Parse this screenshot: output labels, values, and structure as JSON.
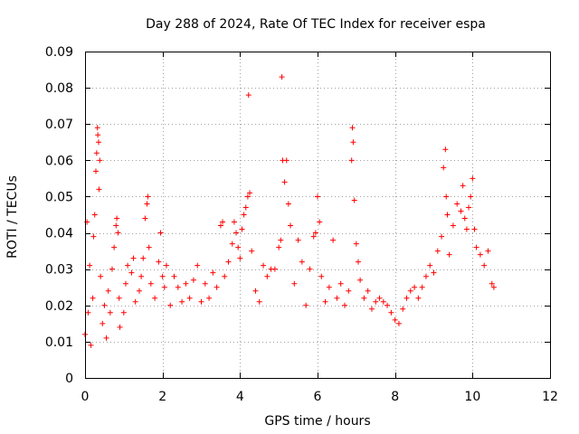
{
  "chart_data": {
    "type": "scatter",
    "title": "Day 288 of 2024, Rate Of TEC Index for receiver espa",
    "xlabel": "GPS time / hours",
    "ylabel": "ROTI / TECUs",
    "xlim": [
      0,
      12
    ],
    "ylim": [
      0,
      0.09
    ],
    "xticks": [
      "0",
      "2",
      "4",
      "6",
      "8",
      "10",
      "12"
    ],
    "yticks": [
      "0",
      "0.01",
      "0.02",
      "0.03",
      "0.04",
      "0.05",
      "0.06",
      "0.07",
      "0.08",
      "0.09"
    ],
    "grid": true,
    "marker": "+",
    "color": "#ff0000",
    "series": [
      {
        "name": "ROTI",
        "x": [
          0.0,
          0.05,
          0.08,
          0.12,
          0.15,
          0.2,
          0.22,
          0.25,
          0.28,
          0.3,
          0.32,
          0.33,
          0.35,
          0.36,
          0.38,
          0.4,
          0.45,
          0.5,
          0.55,
          0.6,
          0.65,
          0.7,
          0.75,
          0.8,
          0.82,
          0.85,
          0.88,
          0.9,
          1.0,
          1.05,
          1.1,
          1.2,
          1.25,
          1.3,
          1.4,
          1.45,
          1.5,
          1.55,
          1.6,
          1.62,
          1.65,
          1.7,
          1.8,
          1.9,
          1.95,
          2.0,
          2.05,
          2.1,
          2.2,
          2.3,
          2.4,
          2.5,
          2.6,
          2.7,
          2.8,
          2.9,
          3.0,
          3.1,
          3.2,
          3.3,
          3.4,
          3.5,
          3.55,
          3.6,
          3.7,
          3.8,
          3.85,
          3.9,
          3.95,
          4.0,
          4.05,
          4.1,
          4.15,
          4.2,
          4.22,
          4.25,
          4.3,
          4.4,
          4.5,
          4.6,
          4.7,
          4.8,
          4.9,
          5.0,
          5.05,
          5.08,
          5.1,
          5.15,
          5.2,
          5.25,
          5.3,
          5.4,
          5.5,
          5.6,
          5.7,
          5.8,
          5.9,
          5.95,
          6.0,
          6.05,
          6.1,
          6.2,
          6.3,
          6.4,
          6.5,
          6.6,
          6.7,
          6.8,
          6.88,
          6.9,
          6.92,
          6.95,
          7.0,
          7.05,
          7.1,
          7.2,
          7.3,
          7.4,
          7.5,
          7.6,
          7.7,
          7.8,
          7.9,
          8.0,
          8.1,
          8.2,
          8.3,
          8.4,
          8.5,
          8.6,
          8.7,
          8.8,
          8.9,
          9.0,
          9.1,
          9.2,
          9.25,
          9.3,
          9.32,
          9.35,
          9.4,
          9.5,
          9.6,
          9.7,
          9.75,
          9.8,
          9.85,
          9.9,
          9.95,
          10.0,
          10.05,
          10.1,
          10.2,
          10.3,
          10.4,
          10.5,
          10.55
        ],
        "y": [
          0.012,
          0.043,
          0.018,
          0.031,
          0.009,
          0.022,
          0.039,
          0.045,
          0.057,
          0.062,
          0.069,
          0.067,
          0.065,
          0.052,
          0.06,
          0.028,
          0.015,
          0.02,
          0.011,
          0.024,
          0.018,
          0.03,
          0.036,
          0.042,
          0.044,
          0.04,
          0.022,
          0.014,
          0.018,
          0.026,
          0.031,
          0.029,
          0.033,
          0.021,
          0.024,
          0.028,
          0.033,
          0.044,
          0.048,
          0.05,
          0.036,
          0.026,
          0.022,
          0.032,
          0.04,
          0.028,
          0.025,
          0.031,
          0.02,
          0.028,
          0.025,
          0.021,
          0.026,
          0.022,
          0.027,
          0.031,
          0.021,
          0.026,
          0.022,
          0.029,
          0.025,
          0.042,
          0.043,
          0.028,
          0.032,
          0.037,
          0.043,
          0.04,
          0.036,
          0.033,
          0.041,
          0.045,
          0.047,
          0.05,
          0.078,
          0.051,
          0.035,
          0.024,
          0.021,
          0.031,
          0.028,
          0.03,
          0.03,
          0.036,
          0.038,
          0.083,
          0.06,
          0.054,
          0.06,
          0.048,
          0.042,
          0.026,
          0.038,
          0.032,
          0.02,
          0.03,
          0.039,
          0.04,
          0.05,
          0.043,
          0.028,
          0.021,
          0.025,
          0.038,
          0.022,
          0.026,
          0.02,
          0.024,
          0.06,
          0.069,
          0.065,
          0.049,
          0.037,
          0.032,
          0.027,
          0.022,
          0.024,
          0.019,
          0.021,
          0.022,
          0.021,
          0.02,
          0.018,
          0.016,
          0.015,
          0.019,
          0.022,
          0.024,
          0.025,
          0.022,
          0.025,
          0.028,
          0.031,
          0.029,
          0.035,
          0.039,
          0.058,
          0.063,
          0.05,
          0.045,
          0.034,
          0.042,
          0.048,
          0.046,
          0.053,
          0.044,
          0.041,
          0.047,
          0.05,
          0.055,
          0.041,
          0.036,
          0.034,
          0.031,
          0.035,
          0.026,
          0.025
        ]
      }
    ]
  }
}
